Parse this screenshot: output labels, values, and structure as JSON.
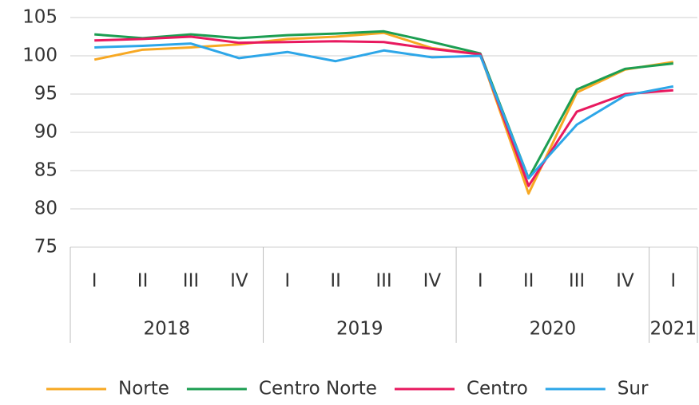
{
  "chart_data": {
    "type": "line",
    "categories": [
      "I",
      "II",
      "III",
      "IV",
      "I",
      "II",
      "III",
      "IV",
      "I",
      "II",
      "III",
      "IV",
      "I"
    ],
    "groups": [
      {
        "label": "2018",
        "span": 4
      },
      {
        "label": "2019",
        "span": 4
      },
      {
        "label": "2020",
        "span": 4
      },
      {
        "label": "2021",
        "span": 1
      }
    ],
    "series": [
      {
        "name": "Norte",
        "color": "#f7a823",
        "values": [
          99.5,
          100.8,
          101.1,
          101.5,
          102.2,
          102.5,
          103.0,
          101.0,
          100.2,
          82.0,
          95.2,
          98.2,
          99.2
        ]
      },
      {
        "name": "Centro Norte",
        "color": "#1c9e52",
        "values": [
          102.8,
          102.3,
          102.8,
          102.3,
          102.7,
          102.9,
          103.2,
          101.8,
          100.3,
          84.0,
          95.6,
          98.3,
          99.0
        ]
      },
      {
        "name": "Centro",
        "color": "#e8195f",
        "values": [
          102.0,
          102.2,
          102.5,
          101.7,
          101.8,
          101.9,
          101.8,
          100.9,
          100.2,
          83.0,
          92.7,
          95.0,
          95.5
        ]
      },
      {
        "name": "Sur",
        "color": "#2da6e8",
        "values": [
          101.1,
          101.3,
          101.6,
          99.7,
          100.5,
          99.3,
          100.7,
          99.8,
          100.0,
          84.0,
          91.0,
          94.8,
          96.0
        ]
      }
    ],
    "ylim": [
      75,
      105
    ],
    "yticks": [
      75,
      80,
      85,
      90,
      95,
      100,
      105
    ],
    "grid": true,
    "legend": "bottom"
  }
}
